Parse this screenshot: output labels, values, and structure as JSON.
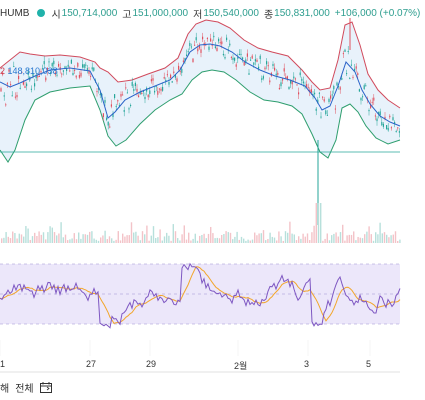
{
  "header": {
    "symbol": "HUMB",
    "open_label": "시",
    "open_value": "150,714,000",
    "high_label": "고",
    "high_value": "151,000,000",
    "low_label": "저",
    "low_value": "150,540,000",
    "close_label": "종",
    "close_value": "150,831,000",
    "change": "+106,000 (+0.07%)"
  },
  "bb_legend": {
    "v1": "2",
    "v2": "148,810,038"
  },
  "x_axis": {
    "labels": [
      "1",
      "27",
      "29",
      "2월",
      "3",
      "5"
    ]
  },
  "footer": {
    "labels": [
      "해",
      "전체"
    ],
    "calendar_icon": "calendar-icon"
  },
  "colors": {
    "upper_band": "#d14a5c",
    "lower_band": "#2e9e6e",
    "middle_band": "#2a62c8",
    "band_fill": "#e6f1fb",
    "candle_up": "#e0505e",
    "candle_down": "#26a69a",
    "rsi_line": "#7e57c2",
    "rsi_ma": "#f2a62b",
    "rsi_band": "#ece7fa"
  }
}
